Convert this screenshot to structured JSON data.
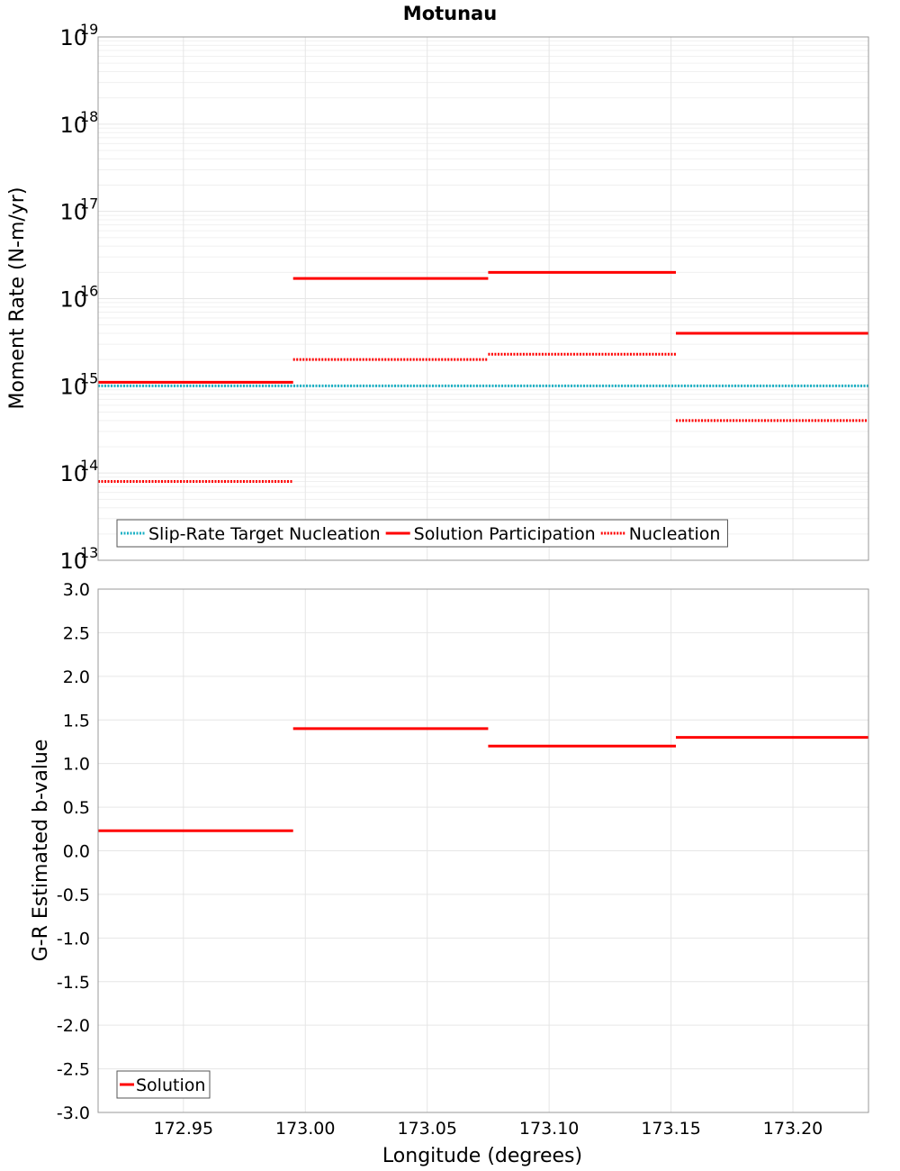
{
  "title": "Motunau",
  "colors": {
    "solution": "#ff0000",
    "nucleation": "#ff0000",
    "target": "#1ab0c4",
    "grid": "#e6e6e6",
    "minor_grid": "#f0f0f0",
    "frame": "#999999"
  },
  "chart_data": [
    {
      "type": "line",
      "panel": "top",
      "ylabel": "Moment Rate (N-m/yr)",
      "yscale": "log",
      "ylim_exp": [
        13,
        19
      ],
      "ytick_base": "10",
      "ytick_exponents": [
        "19",
        "18",
        "17",
        "16",
        "15",
        "14",
        "13"
      ],
      "xlim": [
        172.915,
        173.231
      ],
      "legend": {
        "position": "bottom-left",
        "entries": [
          {
            "label": "Slip-Rate Target Nucleation",
            "style": "dotted",
            "color": "#1ab0c4"
          },
          {
            "label": "Solution Participation",
            "style": "solid",
            "color": "#ff0000"
          },
          {
            "label": "Nucleation",
            "style": "dotted",
            "color": "#ff0000"
          }
        ]
      },
      "series": [
        {
          "name": "Slip-Rate Target Nucleation",
          "style": "dotted",
          "color": "#1ab0c4",
          "segments": [
            {
              "x0": 172.915,
              "x1": 173.231,
              "value": 1000000000000000.0
            }
          ]
        },
        {
          "name": "Solution Participation",
          "style": "solid",
          "color": "#ff0000",
          "segments": [
            {
              "x0": 172.915,
              "x1": 172.995,
              "value": 1100000000000000.0
            },
            {
              "x0": 172.995,
              "x1": 173.075,
              "value": 1.7e+16
            },
            {
              "x0": 173.075,
              "x1": 173.152,
              "value": 2e+16
            },
            {
              "x0": 173.152,
              "x1": 173.231,
              "value": 4000000000000000.0
            }
          ]
        },
        {
          "name": "Nucleation",
          "style": "dotted",
          "color": "#ff0000",
          "segments": [
            {
              "x0": 172.915,
              "x1": 172.995,
              "value": 80000000000000.0
            },
            {
              "x0": 172.995,
              "x1": 173.075,
              "value": 2000000000000000.0
            },
            {
              "x0": 173.075,
              "x1": 173.152,
              "value": 2300000000000000.0
            },
            {
              "x0": 173.152,
              "x1": 173.231,
              "value": 400000000000000.0
            }
          ]
        }
      ]
    },
    {
      "type": "line",
      "panel": "bottom",
      "ylabel": "G-R Estimated b-value",
      "xlabel": "Longitude (degrees)",
      "ylim": [
        -3.0,
        3.0
      ],
      "yticks": [
        "3.0",
        "2.5",
        "2.0",
        "1.5",
        "1.0",
        "0.5",
        "0.0",
        "-0.5",
        "-1.0",
        "-1.5",
        "-2.0",
        "-2.5",
        "-3.0"
      ],
      "xlim": [
        172.915,
        173.231
      ],
      "xticks": [
        "172.95",
        "173.00",
        "173.05",
        "173.10",
        "173.15",
        "173.20"
      ],
      "legend": {
        "position": "bottom-left",
        "entries": [
          {
            "label": "Solution",
            "style": "solid",
            "color": "#ff0000"
          }
        ]
      },
      "series": [
        {
          "name": "Solution",
          "style": "solid",
          "color": "#ff0000",
          "segments": [
            {
              "x0": 172.915,
              "x1": 172.995,
              "value": 0.23
            },
            {
              "x0": 172.995,
              "x1": 173.075,
              "value": 1.4
            },
            {
              "x0": 173.075,
              "x1": 173.152,
              "value": 1.2
            },
            {
              "x0": 173.152,
              "x1": 173.231,
              "value": 1.3
            }
          ]
        }
      ]
    }
  ]
}
